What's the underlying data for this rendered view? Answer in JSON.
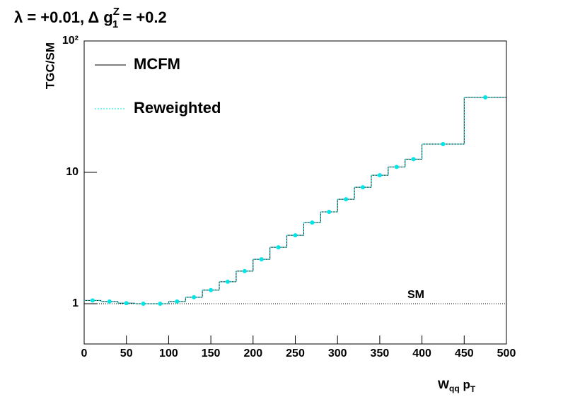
{
  "chart_data": {
    "type": "histogram",
    "title_parts": [
      "λ = +0.01, Δ g",
      "Z",
      "1",
      " = +0.2"
    ],
    "ylabel": "TGC/SM",
    "xlabel_parts": [
      "W",
      "qq",
      " p",
      "T"
    ],
    "bins": [
      0,
      20,
      40,
      60,
      80,
      100,
      120,
      140,
      160,
      180,
      200,
      220,
      240,
      260,
      280,
      300,
      320,
      340,
      360,
      380,
      400,
      450,
      500
    ],
    "series": [
      {
        "name": "MCFM",
        "color": "#000000",
        "style": "line",
        "values": [
          1.06,
          1.04,
          1.01,
          1.0,
          1.0,
          1.04,
          1.12,
          1.27,
          1.47,
          1.77,
          2.18,
          2.69,
          3.32,
          4.15,
          5.0,
          6.24,
          7.7,
          9.5,
          11.0,
          12.6,
          16.4,
          37.2
        ]
      },
      {
        "name": "Reweighted",
        "color": "#00e5e5",
        "style": "markers",
        "values": [
          1.06,
          1.04,
          1.01,
          1.0,
          1.0,
          1.04,
          1.12,
          1.27,
          1.47,
          1.77,
          2.18,
          2.69,
          3.32,
          4.15,
          5.0,
          6.24,
          7.7,
          9.5,
          11.0,
          12.6,
          16.4,
          37.2
        ]
      }
    ],
    "reference": {
      "label": "SM",
      "value": 1
    },
    "log_y": true,
    "xlim": [
      0,
      500
    ],
    "xticks": [
      0,
      50,
      100,
      150,
      200,
      250,
      300,
      350,
      400,
      450,
      500
    ],
    "ylim": [
      0.494,
      100
    ],
    "yticks": [
      1,
      10,
      {
        "value": 100,
        "label": "10²"
      }
    ],
    "legend": "top-left"
  }
}
